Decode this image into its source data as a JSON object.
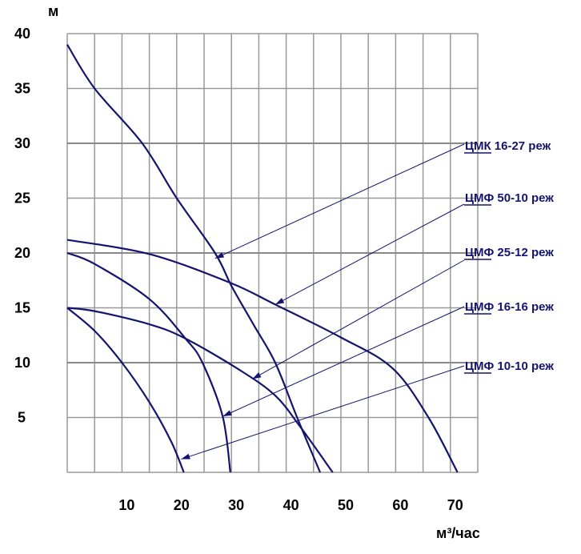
{
  "chart_data": {
    "type": "line",
    "title": "",
    "xlabel": "м³/час",
    "ylabel": "м",
    "xlim": [
      0,
      75
    ],
    "ylim": [
      0,
      40
    ],
    "x_ticks": [
      "10",
      "20",
      "30",
      "40",
      "50",
      "60",
      "70"
    ],
    "y_ticks": [
      "40",
      "35",
      "30",
      "25",
      "20",
      "15",
      "10",
      "5"
    ],
    "grid": true,
    "line_color": "#14146e",
    "series": [
      {
        "name": "ЦМК 16-27 реж",
        "points": [
          [
            0,
            39
          ],
          [
            5,
            35
          ],
          [
            13.7,
            30
          ],
          [
            20,
            25
          ],
          [
            27,
            20
          ],
          [
            30,
            17
          ],
          [
            34,
            13.5
          ],
          [
            38,
            10
          ],
          [
            42,
            5
          ],
          [
            46.2,
            0
          ]
        ],
        "arrow_to": [
          27,
          19.5
        ]
      },
      {
        "name": "ЦМФ 50-10 реж",
        "points": [
          [
            0,
            21.2
          ],
          [
            15,
            19.9
          ],
          [
            29.7,
            17.3
          ],
          [
            38,
            15.3
          ],
          [
            50,
            12.3
          ],
          [
            59.4,
            9.5
          ],
          [
            66,
            5
          ],
          [
            71.3,
            0
          ]
        ],
        "arrow_to": [
          38,
          15.3
        ]
      },
      {
        "name": "ЦМФ 25-12 реж",
        "points": [
          [
            0,
            15
          ],
          [
            5,
            14.7
          ],
          [
            15,
            13.5
          ],
          [
            21.6,
            12.2
          ],
          [
            31.6,
            9.3
          ],
          [
            38,
            7
          ],
          [
            42.5,
            4.2
          ],
          [
            48.5,
            0
          ]
        ],
        "arrow_to": [
          33.8,
          8.5
        ]
      },
      {
        "name": "ЦМФ 16-16 реж",
        "points": [
          [
            0,
            20
          ],
          [
            5,
            19
          ],
          [
            15,
            15.8
          ],
          [
            21.6,
            12.2
          ],
          [
            24.7,
            10
          ],
          [
            28.4,
            5.1
          ],
          [
            29.8,
            0
          ]
        ],
        "arrow_to": [
          28.4,
          5.1
        ]
      },
      {
        "name": "ЦМФ 10-10 реж",
        "points": [
          [
            0,
            15
          ],
          [
            5,
            12.9
          ],
          [
            10,
            10
          ],
          [
            15,
            6.4
          ],
          [
            19,
            2.8
          ],
          [
            21.3,
            0
          ]
        ],
        "arrow_to": [
          20.8,
          1.2
        ]
      }
    ]
  }
}
